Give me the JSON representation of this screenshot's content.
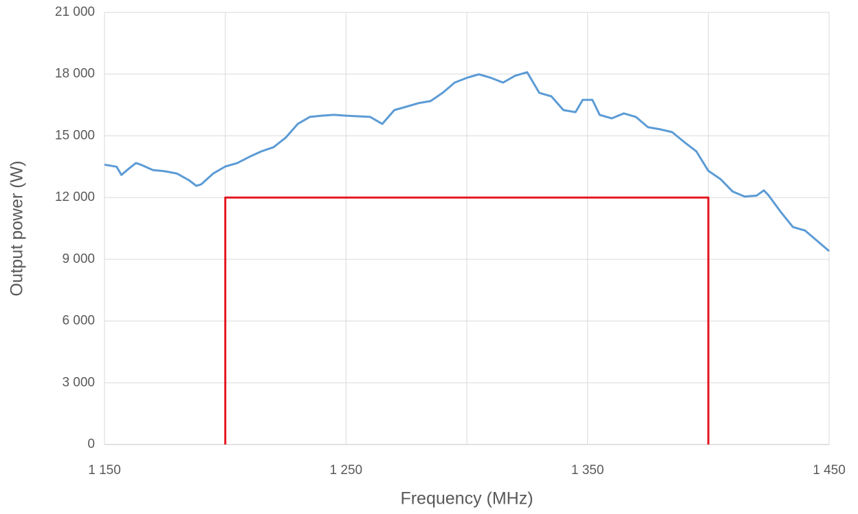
{
  "chart_data": {
    "type": "line",
    "x_label": "Frequency (MHz)",
    "y_label": "Output power (W)",
    "xlim": [
      1150,
      1450
    ],
    "xticks": [
      {
        "value": 1150,
        "label": "1 150"
      },
      {
        "value": 1200,
        "label": null
      },
      {
        "value": 1250,
        "label": "1 250"
      },
      {
        "value": 1300,
        "label": null
      },
      {
        "value": 1350,
        "label": "1 350"
      },
      {
        "value": 1400,
        "label": null
      },
      {
        "value": 1450,
        "label": "1 450"
      }
    ],
    "ylim": [
      0,
      21000
    ],
    "yticks": [
      0,
      {
        "value": 3000,
        "label": "3 000"
      },
      {
        "value": 6000,
        "label": "6 000"
      },
      {
        "value": 9000,
        "label": "9 000"
      },
      {
        "value": 12000,
        "label": "12 000"
      },
      {
        "value": 15000,
        "label": "15 000"
      },
      {
        "value": 18000,
        "label": "18 000"
      },
      {
        "value": 21000,
        "label": "21 000"
      }
    ],
    "grid": true,
    "series": [
      {
        "color": "#5b9bd5",
        "x": [
          1150,
          1155,
          1157,
          1160,
          1163,
          1165,
          1170,
          1175,
          1180,
          1185,
          1188,
          1190,
          1195,
          1200,
          1205,
          1210,
          1215,
          1220,
          1225,
          1230,
          1235,
          1240,
          1245,
          1250,
          1255,
          1260,
          1265,
          1270,
          1275,
          1280,
          1285,
          1290,
          1295,
          1300,
          1305,
          1310,
          1315,
          1320,
          1325,
          1330,
          1335,
          1340,
          1345,
          1348,
          1352,
          1355,
          1360,
          1365,
          1370,
          1375,
          1380,
          1385,
          1390,
          1395,
          1400,
          1405,
          1410,
          1415,
          1420,
          1423,
          1425,
          1430,
          1435,
          1440,
          1445,
          1450
        ],
        "values": [
          13600,
          13500,
          13100,
          13400,
          13680,
          13600,
          13340,
          13280,
          13170,
          12840,
          12570,
          12640,
          13170,
          13510,
          13680,
          13980,
          14250,
          14450,
          14910,
          15580,
          15920,
          15980,
          16020,
          15980,
          15950,
          15920,
          15580,
          16250,
          16420,
          16590,
          16690,
          17090,
          17590,
          17820,
          17990,
          17820,
          17590,
          17920,
          18090,
          17090,
          16920,
          16250,
          16150,
          16750,
          16750,
          16020,
          15850,
          16090,
          15920,
          15420,
          15320,
          15180,
          14700,
          14250,
          13300,
          12900,
          12300,
          12050,
          12100,
          12350,
          12100,
          11300,
          10570,
          10400,
          9900,
          9400
        ]
      },
      {
        "color": "#e3161e",
        "x": [
          1200,
          1200,
          1400,
          1400
        ],
        "values": [
          0,
          12000,
          12000,
          0
        ]
      }
    ]
  }
}
